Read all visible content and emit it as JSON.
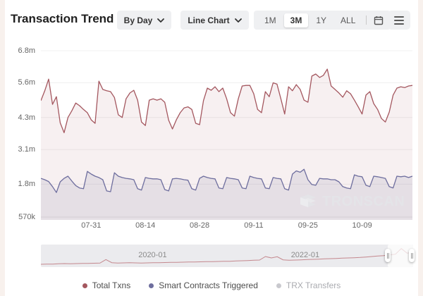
{
  "header": {
    "title": "Transaction Trend",
    "granularity_dropdown": {
      "value": "By Day"
    },
    "chart_type_dropdown": {
      "value": "Line Chart"
    },
    "range_buttons": [
      "1M",
      "3M",
      "1Y",
      "ALL"
    ],
    "selected_range": "3M"
  },
  "watermark": {
    "text": "TRONSCAN"
  },
  "chart_data": {
    "type": "line",
    "title": "Transaction Trend",
    "grid": true,
    "legend_position": "bottom",
    "y_ticks": [
      "6.8m",
      "5.6m",
      "4.3m",
      "3.1m",
      "1.8m",
      "570k"
    ],
    "y_tick_values": [
      6.8,
      5.6,
      4.3,
      3.1,
      1.8,
      0.57
    ],
    "ylim": [
      0.57,
      6.8
    ],
    "y_unit": "millions of transactions per day",
    "x_ticks": [
      "07-31",
      "08-14",
      "08-28",
      "09-11",
      "09-25",
      "10-09"
    ],
    "x_tick_indices": [
      13,
      27,
      41,
      55,
      69,
      83
    ],
    "series": [
      {
        "name": "Total Txns",
        "color": "#a4575f",
        "fill": "rgba(164,87,95,0.09)",
        "visible": true,
        "values": [
          4.93,
          5.3,
          5.74,
          4.79,
          5.08,
          4.1,
          3.73,
          4.3,
          4.55,
          4.84,
          4.74,
          4.6,
          4.48,
          4.21,
          4.08,
          5.66,
          5.35,
          5.3,
          5.27,
          5.05,
          4.4,
          4.3,
          5.0,
          5.22,
          5.32,
          4.95,
          4.13,
          4.0,
          4.95,
          5.0,
          4.95,
          5.0,
          4.87,
          4.2,
          3.87,
          4.21,
          4.48,
          4.66,
          4.7,
          4.6,
          4.08,
          4.03,
          4.93,
          5.4,
          5.32,
          5.45,
          5.27,
          5.4,
          5.0,
          4.48,
          4.35,
          5.0,
          5.48,
          5.5,
          5.5,
          5.19,
          4.6,
          4.48,
          5.27,
          5.08,
          5.6,
          5.55,
          5.0,
          4.43,
          5.45,
          5.3,
          5.53,
          5.35,
          4.95,
          4.87,
          5.85,
          5.93,
          5.8,
          5.88,
          6.11,
          5.48,
          5.35,
          5.22,
          5.06,
          5.3,
          5.19,
          4.95,
          4.7,
          4.43,
          5.14,
          5.27,
          4.82,
          4.6,
          4.26,
          4.13,
          4.5,
          5.14,
          5.4,
          5.45,
          5.42,
          5.48,
          5.5
        ]
      },
      {
        "name": "Smart Contracts Triggered",
        "color": "#6e6e9e",
        "fill": "rgba(110,110,158,0.13)",
        "visible": true,
        "values": [
          2.02,
          1.97,
          1.9,
          1.71,
          1.49,
          1.89,
          2.02,
          2.1,
          1.92,
          1.75,
          1.66,
          1.63,
          2.28,
          2.18,
          2.1,
          2.05,
          1.97,
          1.55,
          1.52,
          2.23,
          2.1,
          2.05,
          2.02,
          2.0,
          1.97,
          1.63,
          1.58,
          2.05,
          2.02,
          2.0,
          2.0,
          1.97,
          1.6,
          1.55,
          2.0,
          2.02,
          2.0,
          1.97,
          1.95,
          1.63,
          1.58,
          2.02,
          2.1,
          2.05,
          2.02,
          2.0,
          1.66,
          1.63,
          2.05,
          2.02,
          2.0,
          1.97,
          1.66,
          1.63,
          2.1,
          2.05,
          2.02,
          2.0,
          1.66,
          1.63,
          2.05,
          2.02,
          2.0,
          1.63,
          1.58,
          2.18,
          2.3,
          2.25,
          2.36,
          1.97,
          1.79,
          1.76,
          2.02,
          2.0,
          2.0,
          1.97,
          1.97,
          1.89,
          1.71,
          1.66,
          1.63,
          2.15,
          2.1,
          2.08,
          1.76,
          1.71,
          2.1,
          2.08,
          2.05,
          2.02,
          1.71,
          1.66,
          2.1,
          2.08,
          2.1,
          2.05,
          2.1
        ]
      },
      {
        "name": "TRX Transfers",
        "color": "#c9c9ce",
        "visible": false,
        "values": []
      }
    ]
  },
  "minimap": {
    "labels": [
      "2020-01",
      "2022-01"
    ],
    "line_color": "#c4878d",
    "ymax": 7.5,
    "values": [
      0.3,
      0.35,
      0.4,
      0.5,
      0.6,
      0.55,
      0.6,
      0.65,
      0.7,
      0.75,
      0.8,
      2.3,
      1.0,
      0.85,
      0.9,
      0.95,
      0.9,
      0.85,
      0.9,
      0.95,
      1.0,
      1.05,
      1.1,
      1.15,
      1.2,
      1.25,
      1.3,
      1.35,
      1.4,
      1.45,
      1.5,
      1.55,
      1.6,
      1.7,
      1.8,
      1.9,
      2.0,
      2.1,
      3.6,
      3.0,
      3.5,
      2.2,
      2.0,
      2.1,
      2.2,
      2.3,
      2.4,
      2.5,
      2.6,
      2.7,
      2.8,
      2.9,
      3.0,
      3.1,
      3.2,
      3.4,
      3.6,
      3.8,
      4.0,
      4.3,
      4.6,
      7.0,
      5.0,
      5.5
    ]
  }
}
